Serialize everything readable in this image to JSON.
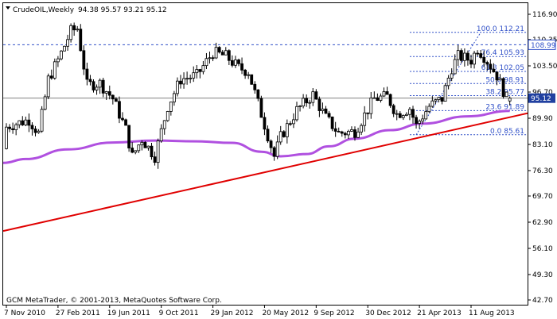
{
  "header": {
    "menu_icon": "triangle-down-icon",
    "symbol": "CrudeOIL,Weekly",
    "ohlc": "94.38 95.57 93.21 95.12"
  },
  "footer": {
    "copyright": "GCM MetaTrader, © 2001-2013, MetaQuotes Software Corp."
  },
  "price_labels": {
    "bid": "95.12",
    "marker": "108.99"
  },
  "colors": {
    "candle": "#000000",
    "moving_average": "#b050e0",
    "trendline": "#e00000",
    "fibonacci": "#3050c8",
    "grid_dashed": "#3050c8",
    "price_highlight_bg": "#2040a0"
  },
  "chart_data": {
    "type": "candlestick",
    "symbol": "CrudeOIL",
    "timeframe": "Weekly",
    "y_ticks": [
      "116.90",
      "110.35",
      "103.50",
      "96.70",
      "89.90",
      "83.10",
      "76.30",
      "69.70",
      "62.90",
      "56.10",
      "49.30",
      "42.70"
    ],
    "ylim": [
      42.7,
      116.9
    ],
    "x_ticks": [
      {
        "label": "7 Nov 2010",
        "date": "2010-11-07"
      },
      {
        "label": "27 Feb 2011",
        "date": "2011-02-27"
      },
      {
        "label": "19 Jun 2011",
        "date": "2011-06-19"
      },
      {
        "label": "9 Oct 2011",
        "date": "2011-10-09"
      },
      {
        "label": "29 Jan 2012",
        "date": "2012-01-29"
      },
      {
        "label": "20 May 2012",
        "date": "2012-05-20"
      },
      {
        "label": "9 Sep 2012",
        "date": "2012-09-09"
      },
      {
        "label": "30 Dec 2012",
        "date": "2012-12-30"
      },
      {
        "label": "21 Apr 2013",
        "date": "2013-04-21"
      },
      {
        "label": "11 Aug 2013",
        "date": "2013-08-11"
      }
    ],
    "last_ohlc": {
      "open": 94.38,
      "high": 95.57,
      "low": 93.21,
      "close": 95.12
    },
    "fibonacci": [
      {
        "label": "100.0 112.21",
        "value": 112.21
      },
      {
        "label": "76.4 105.93",
        "value": 105.93
      },
      {
        "label": "61.8 102.05",
        "value": 102.05
      },
      {
        "label": "50.0 98.91",
        "value": 98.91
      },
      {
        "label": "38.2 95.77",
        "value": 95.77
      },
      {
        "label": "23.6 91.89",
        "value": 91.89
      },
      {
        "label": "0.0 85.61",
        "value": 85.61
      }
    ],
    "fib_range_dates": [
      "2013-04-14",
      "2013-08-25"
    ],
    "horizontal_line": 108.99,
    "trendline": [
      {
        "date": "2010-09-19",
        "value": 60.6
      },
      {
        "date": "2013-11-03",
        "value": 91.2
      }
    ],
    "moving_average": [
      {
        "date": "2010-09-19",
        "value": 78.3
      },
      {
        "date": "2010-12-19",
        "value": 79.3
      },
      {
        "date": "2011-03-20",
        "value": 81.8
      },
      {
        "date": "2011-06-26",
        "value": 83.6
      },
      {
        "date": "2011-09-25",
        "value": 84.1
      },
      {
        "date": "2011-12-25",
        "value": 83.9
      },
      {
        "date": "2012-03-11",
        "value": 83.5
      },
      {
        "date": "2012-05-13",
        "value": 81.2
      },
      {
        "date": "2012-06-24",
        "value": 80.0
      },
      {
        "date": "2012-08-19",
        "value": 80.6
      },
      {
        "date": "2012-10-07",
        "value": 82.6
      },
      {
        "date": "2012-12-02",
        "value": 84.6
      },
      {
        "date": "2013-02-17",
        "value": 86.8
      },
      {
        "date": "2013-04-28",
        "value": 88.5
      },
      {
        "date": "2013-08-04",
        "value": 90.4
      },
      {
        "date": "2013-11-03",
        "value": 91.8
      }
    ],
    "price_path": [
      {
        "date": "2010-09-19",
        "value": 82.0
      },
      {
        "date": "2010-10-10",
        "value": 82.5
      },
      {
        "date": "2010-10-24",
        "value": 86.5
      },
      {
        "date": "2010-11-21",
        "value": 88.0
      },
      {
        "date": "2011-01-02",
        "value": 89.5
      },
      {
        "date": "2011-01-23",
        "value": 86.0
      },
      {
        "date": "2011-02-13",
        "value": 100.0
      },
      {
        "date": "2011-03-06",
        "value": 105.0
      },
      {
        "date": "2011-04-03",
        "value": 112.5
      },
      {
        "date": "2011-04-17",
        "value": 113.2
      },
      {
        "date": "2011-05-08",
        "value": 98.5
      },
      {
        "date": "2011-06-05",
        "value": 99.0
      },
      {
        "date": "2011-07-03",
        "value": 95.0
      },
      {
        "date": "2011-07-31",
        "value": 87.0
      },
      {
        "date": "2011-08-14",
        "value": 80.0
      },
      {
        "date": "2011-09-04",
        "value": 84.5
      },
      {
        "date": "2011-10-02",
        "value": 80.0
      },
      {
        "date": "2011-10-30",
        "value": 93.0
      },
      {
        "date": "2011-11-27",
        "value": 100.0
      },
      {
        "date": "2012-01-01",
        "value": 101.0
      },
      {
        "date": "2012-02-05",
        "value": 107.0
      },
      {
        "date": "2012-03-04",
        "value": 106.0
      },
      {
        "date": "2012-04-01",
        "value": 103.0
      },
      {
        "date": "2012-04-22",
        "value": 102.0
      },
      {
        "date": "2012-05-20",
        "value": 91.0
      },
      {
        "date": "2012-06-17",
        "value": 80.0
      },
      {
        "date": "2012-07-01",
        "value": 85.0
      },
      {
        "date": "2012-08-05",
        "value": 92.0
      },
      {
        "date": "2012-09-09",
        "value": 96.0
      },
      {
        "date": "2012-10-07",
        "value": 90.0
      },
      {
        "date": "2012-11-04",
        "value": 86.0
      },
      {
        "date": "2012-12-09",
        "value": 86.5
      },
      {
        "date": "2013-01-20",
        "value": 95.0
      },
      {
        "date": "2013-02-17",
        "value": 95.5
      },
      {
        "date": "2013-03-10",
        "value": 91.0
      },
      {
        "date": "2013-04-07",
        "value": 92.5
      },
      {
        "date": "2013-04-21",
        "value": 88.0
      },
      {
        "date": "2013-05-19",
        "value": 93.0
      },
      {
        "date": "2013-06-16",
        "value": 95.0
      },
      {
        "date": "2013-07-07",
        "value": 103.0
      },
      {
        "date": "2013-07-21",
        "value": 106.0
      },
      {
        "date": "2013-08-18",
        "value": 105.0
      },
      {
        "date": "2013-09-01",
        "value": 108.0
      },
      {
        "date": "2013-09-15",
        "value": 106.0
      },
      {
        "date": "2013-10-13",
        "value": 101.0
      },
      {
        "date": "2013-11-03",
        "value": 95.1
      }
    ]
  }
}
